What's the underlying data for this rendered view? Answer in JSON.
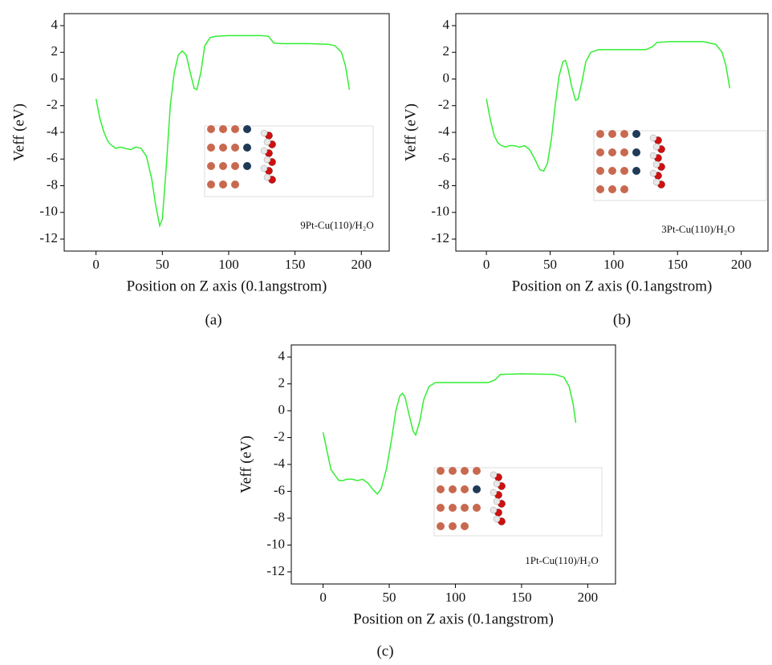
{
  "chart_data": [
    {
      "type": "line",
      "ylabel": "Veff (eV)",
      "xlabel": "Position on Z axis (0.1angstrom)",
      "caption": "(a)",
      "annotation": "9Pt-Cu(110)/H₂O",
      "color": "#33ee33",
      "xlim": [
        -24,
        221
      ],
      "xticks": [
        0,
        50,
        100,
        150,
        200
      ],
      "ylim": [
        -12.9,
        4.9
      ],
      "yticks": [
        4,
        2,
        0,
        -2,
        -4,
        -6,
        -8,
        -10,
        -12
      ],
      "x": [
        0,
        3,
        6,
        9,
        12,
        15,
        18,
        22,
        26,
        30,
        34,
        38,
        42,
        45,
        48,
        50,
        53,
        56,
        59,
        62,
        65,
        68,
        71,
        74,
        76,
        79,
        82,
        86,
        90,
        100,
        110,
        125,
        130,
        134,
        140,
        160,
        175,
        180,
        185,
        188,
        191
      ],
      "values": [
        -1.5,
        -3,
        -4,
        -4.7,
        -5.0,
        -5.2,
        -5.1,
        -5.2,
        -5.3,
        -5.1,
        -5.2,
        -5.8,
        -7.5,
        -9.5,
        -11.0,
        -10.5,
        -6.5,
        -2,
        0.5,
        1.8,
        2.1,
        1.8,
        0.5,
        -0.7,
        -0.8,
        0.5,
        2.5,
        3.1,
        3.2,
        3.25,
        3.25,
        3.25,
        3.2,
        2.7,
        2.65,
        2.65,
        2.6,
        2.5,
        2.0,
        1.0,
        -0.8
      ]
    },
    {
      "type": "line",
      "ylabel": "Veff (eV)",
      "xlabel": "Position on Z axis (0.1angstrom)",
      "caption": "(b)",
      "annotation": "3Pt-Cu(110)/H₂O",
      "color": "#33ee33",
      "xlim": [
        -24,
        221
      ],
      "xticks": [
        0,
        50,
        100,
        150,
        200
      ],
      "ylim": [
        -12.9,
        4.9
      ],
      "yticks": [
        4,
        2,
        0,
        -2,
        -4,
        -6,
        -8,
        -10,
        -12
      ],
      "x": [
        0,
        3,
        6,
        9,
        12,
        15,
        18,
        22,
        26,
        30,
        34,
        38,
        42,
        45,
        48,
        51,
        54,
        57,
        60,
        62,
        64,
        67,
        70,
        72,
        75,
        78,
        82,
        88,
        100,
        125,
        130,
        134,
        145,
        170,
        180,
        185,
        188,
        191
      ],
      "values": [
        -1.5,
        -3,
        -4.2,
        -4.8,
        -5.0,
        -5.1,
        -5.0,
        -5.0,
        -5.1,
        -5.0,
        -5.3,
        -6.0,
        -6.8,
        -6.9,
        -6.3,
        -4.5,
        -2,
        0.2,
        1.3,
        1.4,
        0.8,
        -0.6,
        -1.6,
        -1.5,
        -0.2,
        1.3,
        2.0,
        2.2,
        2.2,
        2.2,
        2.4,
        2.75,
        2.8,
        2.8,
        2.6,
        2.0,
        1.0,
        -0.7
      ]
    },
    {
      "type": "line",
      "ylabel": "Veff (eV)",
      "xlabel": "Position on Z axis (0.1angstrom)",
      "caption": "(c)",
      "annotation": "1Pt-Cu(110)/H₂O",
      "color": "#33ee33",
      "xlim": [
        -24,
        221
      ],
      "xticks": [
        0,
        50,
        100,
        150,
        200
      ],
      "ylim": [
        -12.9,
        4.9
      ],
      "yticks": [
        4,
        2,
        0,
        -2,
        -4,
        -6,
        -8,
        -10,
        -12
      ],
      "x": [
        0,
        3,
        6,
        9,
        12,
        15,
        18,
        22,
        26,
        30,
        34,
        38,
        41,
        44,
        48,
        52,
        55,
        58,
        60,
        62,
        65,
        68,
        70,
        73,
        76,
        80,
        85,
        100,
        125,
        130,
        134,
        150,
        175,
        182,
        186,
        189,
        191
      ],
      "values": [
        -1.6,
        -3,
        -4.4,
        -4.8,
        -5.2,
        -5.2,
        -5.1,
        -5.1,
        -5.2,
        -5.1,
        -5.4,
        -5.9,
        -6.2,
        -5.8,
        -4.3,
        -2,
        0,
        1.1,
        1.3,
        1.0,
        -0.3,
        -1.5,
        -1.8,
        -0.8,
        0.8,
        1.8,
        2.1,
        2.1,
        2.1,
        2.3,
        2.7,
        2.75,
        2.7,
        2.5,
        1.8,
        0.5,
        -0.9
      ]
    }
  ]
}
